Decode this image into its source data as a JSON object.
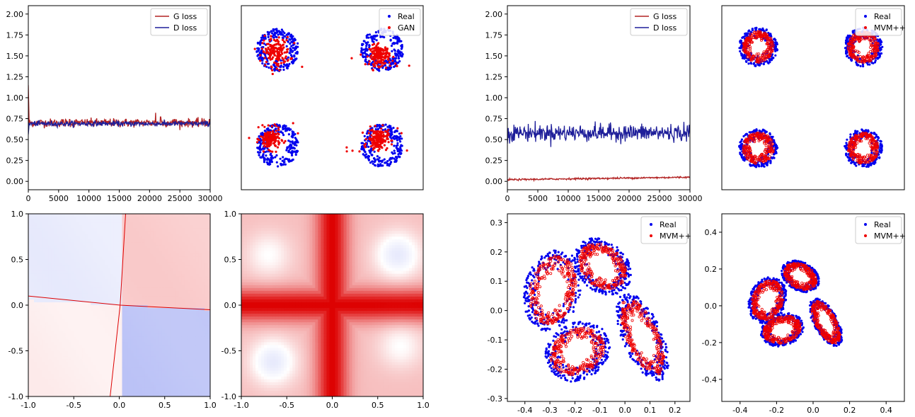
{
  "chart_data": [
    {
      "id": "loss_gan",
      "type": "line",
      "xlim": [
        0,
        30000
      ],
      "ylim": [
        -0.1,
        2.1
      ],
      "x_ticks": [
        "0",
        "5000",
        "10000",
        "15000",
        "20000",
        "25000",
        "30000"
      ],
      "y_ticks": [
        "0.00",
        "0.25",
        "0.50",
        "0.75",
        "1.00",
        "1.25",
        "1.50",
        "1.75",
        "2.00"
      ],
      "legend_position": "top-right",
      "series": [
        {
          "name": "G loss",
          "color": "#b22222",
          "level": 0.7,
          "noise": 0.025,
          "start": 1.15,
          "spikes": [
            [
              6800,
              0.74
            ],
            [
              15600,
              0.72
            ],
            [
              21000,
              0.82
            ],
            [
              21800,
              0.77
            ],
            [
              24200,
              0.74
            ],
            [
              29000,
              0.75
            ]
          ]
        },
        {
          "name": "D loss",
          "color": "#1f1f9a",
          "level": 0.69,
          "noise": 0.015,
          "start": 0.56,
          "spikes": []
        }
      ]
    },
    {
      "id": "scatter_gan",
      "type": "scatter",
      "xlim": [
        -1,
        1
      ],
      "ylim": [
        -1,
        1
      ],
      "show_ticks": false,
      "legend_position": "top-right",
      "series": [
        {
          "name": "Real",
          "color": "#0000ee",
          "rings": [
            [
              -0.6,
              0.52,
              0.22
            ],
            [
              0.55,
              0.52,
              0.22
            ],
            [
              -0.6,
              -0.52,
              0.22
            ],
            [
              0.55,
              -0.52,
              0.22
            ]
          ]
        },
        {
          "name": "GAN",
          "color": "#ee0000",
          "clusters": [
            [
              -0.62,
              0.5,
              0.14
            ],
            [
              0.52,
              0.46,
              0.1
            ],
            [
              -0.68,
              -0.45,
              0.1
            ],
            [
              0.5,
              -0.45,
              0.1
            ]
          ]
        }
      ]
    },
    {
      "id": "heatmap_gan_1",
      "type": "heatmap",
      "xlim": [
        -1,
        1
      ],
      "ylim": [
        -1,
        1
      ],
      "x_ticks": [
        "-1.0",
        "-0.5",
        "0.0",
        "0.5",
        "1.0"
      ],
      "y_ticks": [
        "-1.0",
        "-0.5",
        "0.0",
        "0.5",
        "1.0"
      ],
      "colors": {
        "negative": "#8a96f0",
        "positive": "#f07070",
        "neutral": "#ffffff"
      }
    },
    {
      "id": "heatmap_gan_2",
      "type": "heatmap",
      "xlim": [
        -1,
        1
      ],
      "ylim": [
        -1,
        1
      ],
      "x_ticks": [
        "-1.0",
        "-0.5",
        "0.0",
        "0.5",
        "1.0"
      ],
      "y_ticks": [
        "-1.0",
        "-0.5",
        "0.0",
        "0.5",
        "1.0"
      ],
      "colors": {
        "negative": "#8a96f0",
        "positive": "#dd0000",
        "neutral": "#ffffff"
      }
    },
    {
      "id": "loss_mvm",
      "type": "line",
      "xlim": [
        0,
        30000
      ],
      "ylim": [
        -0.1,
        2.1
      ],
      "x_ticks": [
        "0",
        "5000",
        "10000",
        "15000",
        "20000",
        "25000",
        "30000"
      ],
      "y_ticks": [
        "0.00",
        "0.25",
        "0.50",
        "0.75",
        "1.00",
        "1.25",
        "1.50",
        "1.75",
        "2.00"
      ],
      "legend_position": "top-right",
      "series": [
        {
          "name": "G loss",
          "color": "#b22222",
          "level": 0.02,
          "slope_to": 0.05,
          "noise": 0.005,
          "start": 0.01,
          "spikes": []
        },
        {
          "name": "D loss",
          "color": "#1f1f9a",
          "level": 0.58,
          "noise": 0.05,
          "start": 0.45,
          "spikes": []
        }
      ]
    },
    {
      "id": "scatter_mvm_1",
      "type": "scatter",
      "xlim": [
        -1,
        1
      ],
      "ylim": [
        -1,
        1
      ],
      "show_ticks": false,
      "legend_position": "top-right",
      "series": [
        {
          "name": "Real",
          "color": "#0000ee",
          "rings": [
            [
              -0.6,
              0.55,
              0.2
            ],
            [
              0.55,
              0.55,
              0.2
            ],
            [
              -0.6,
              -0.55,
              0.2
            ],
            [
              0.55,
              -0.55,
              0.2
            ]
          ]
        },
        {
          "name": "MVM++",
          "color": "#ee0000",
          "rings": [
            [
              -0.6,
              0.55,
              0.16
            ],
            [
              0.55,
              0.55,
              0.16
            ],
            [
              -0.6,
              -0.55,
              0.16
            ],
            [
              0.55,
              -0.55,
              0.16
            ]
          ]
        }
      ]
    },
    {
      "id": "scatter_mvm_2",
      "type": "scatter",
      "xlim": [
        -0.47,
        0.26
      ],
      "ylim": [
        -0.31,
        0.33
      ],
      "x_ticks": [
        "-0.4",
        "-0.3",
        "-0.2",
        "-0.1",
        "0.0",
        "0.1",
        "0.2"
      ],
      "x_tick_values": [
        -0.4,
        -0.3,
        -0.2,
        -0.1,
        0.0,
        0.1,
        0.2
      ],
      "y_ticks": [
        "-0.3",
        "-0.2",
        "-0.1",
        "0.0",
        "0.1",
        "0.2",
        "0.3"
      ],
      "y_tick_values": [
        -0.3,
        -0.2,
        -0.1,
        0.0,
        0.1,
        0.2,
        0.3
      ],
      "legend_position": "top-right",
      "series": [
        {
          "name": "Real",
          "color": "#0000ee",
          "ellipses": [
            [
              -0.29,
              0.07,
              0.1,
              0.13,
              -0.4
            ],
            [
              -0.09,
              0.15,
              0.11,
              0.08,
              -0.5
            ],
            [
              -0.19,
              -0.14,
              0.12,
              0.09,
              0.3
            ],
            [
              0.07,
              -0.09,
              0.07,
              0.15,
              0.5
            ]
          ]
        },
        {
          "name": "MVM++",
          "color": "#ee0000",
          "ellipses": [
            [
              -0.29,
              0.07,
              0.08,
              0.11,
              -0.4
            ],
            [
              -0.09,
              0.15,
              0.09,
              0.065,
              -0.5
            ],
            [
              -0.19,
              -0.14,
              0.1,
              0.07,
              0.3
            ],
            [
              0.07,
              -0.09,
              0.055,
              0.13,
              0.5
            ]
          ]
        }
      ]
    },
    {
      "id": "scatter_mvm_3",
      "type": "scatter",
      "xlim": [
        -0.5,
        0.5
      ],
      "ylim": [
        -0.52,
        0.5
      ],
      "x_ticks": [
        "-0.4",
        "-0.2",
        "0.0",
        "0.2",
        "0.4"
      ],
      "x_tick_values": [
        -0.4,
        -0.2,
        0.0,
        0.2,
        0.4
      ],
      "y_ticks": [
        "-0.4",
        "-0.2",
        "0.0",
        "0.2",
        "0.4"
      ],
      "y_tick_values": [
        -0.4,
        -0.2,
        0.0,
        0.2,
        0.4
      ],
      "legend_position": "top-right",
      "series": [
        {
          "name": "Real",
          "color": "#0000ee",
          "ellipses": [
            [
              -0.25,
              0.03,
              0.09,
              0.12,
              -0.4
            ],
            [
              -0.07,
              0.16,
              0.1,
              0.07,
              -0.5
            ],
            [
              -0.17,
              -0.13,
              0.11,
              0.08,
              0.3
            ],
            [
              0.07,
              -0.09,
              0.06,
              0.13,
              0.5
            ]
          ]
        },
        {
          "name": "MVM++",
          "color": "#ee0000",
          "ellipses": [
            [
              -0.25,
              0.03,
              0.075,
              0.1,
              -0.4
            ],
            [
              -0.07,
              0.16,
              0.085,
              0.058,
              -0.5
            ],
            [
              -0.17,
              -0.13,
              0.095,
              0.065,
              0.3
            ],
            [
              0.07,
              -0.09,
              0.05,
              0.115,
              0.5
            ]
          ]
        }
      ]
    }
  ]
}
